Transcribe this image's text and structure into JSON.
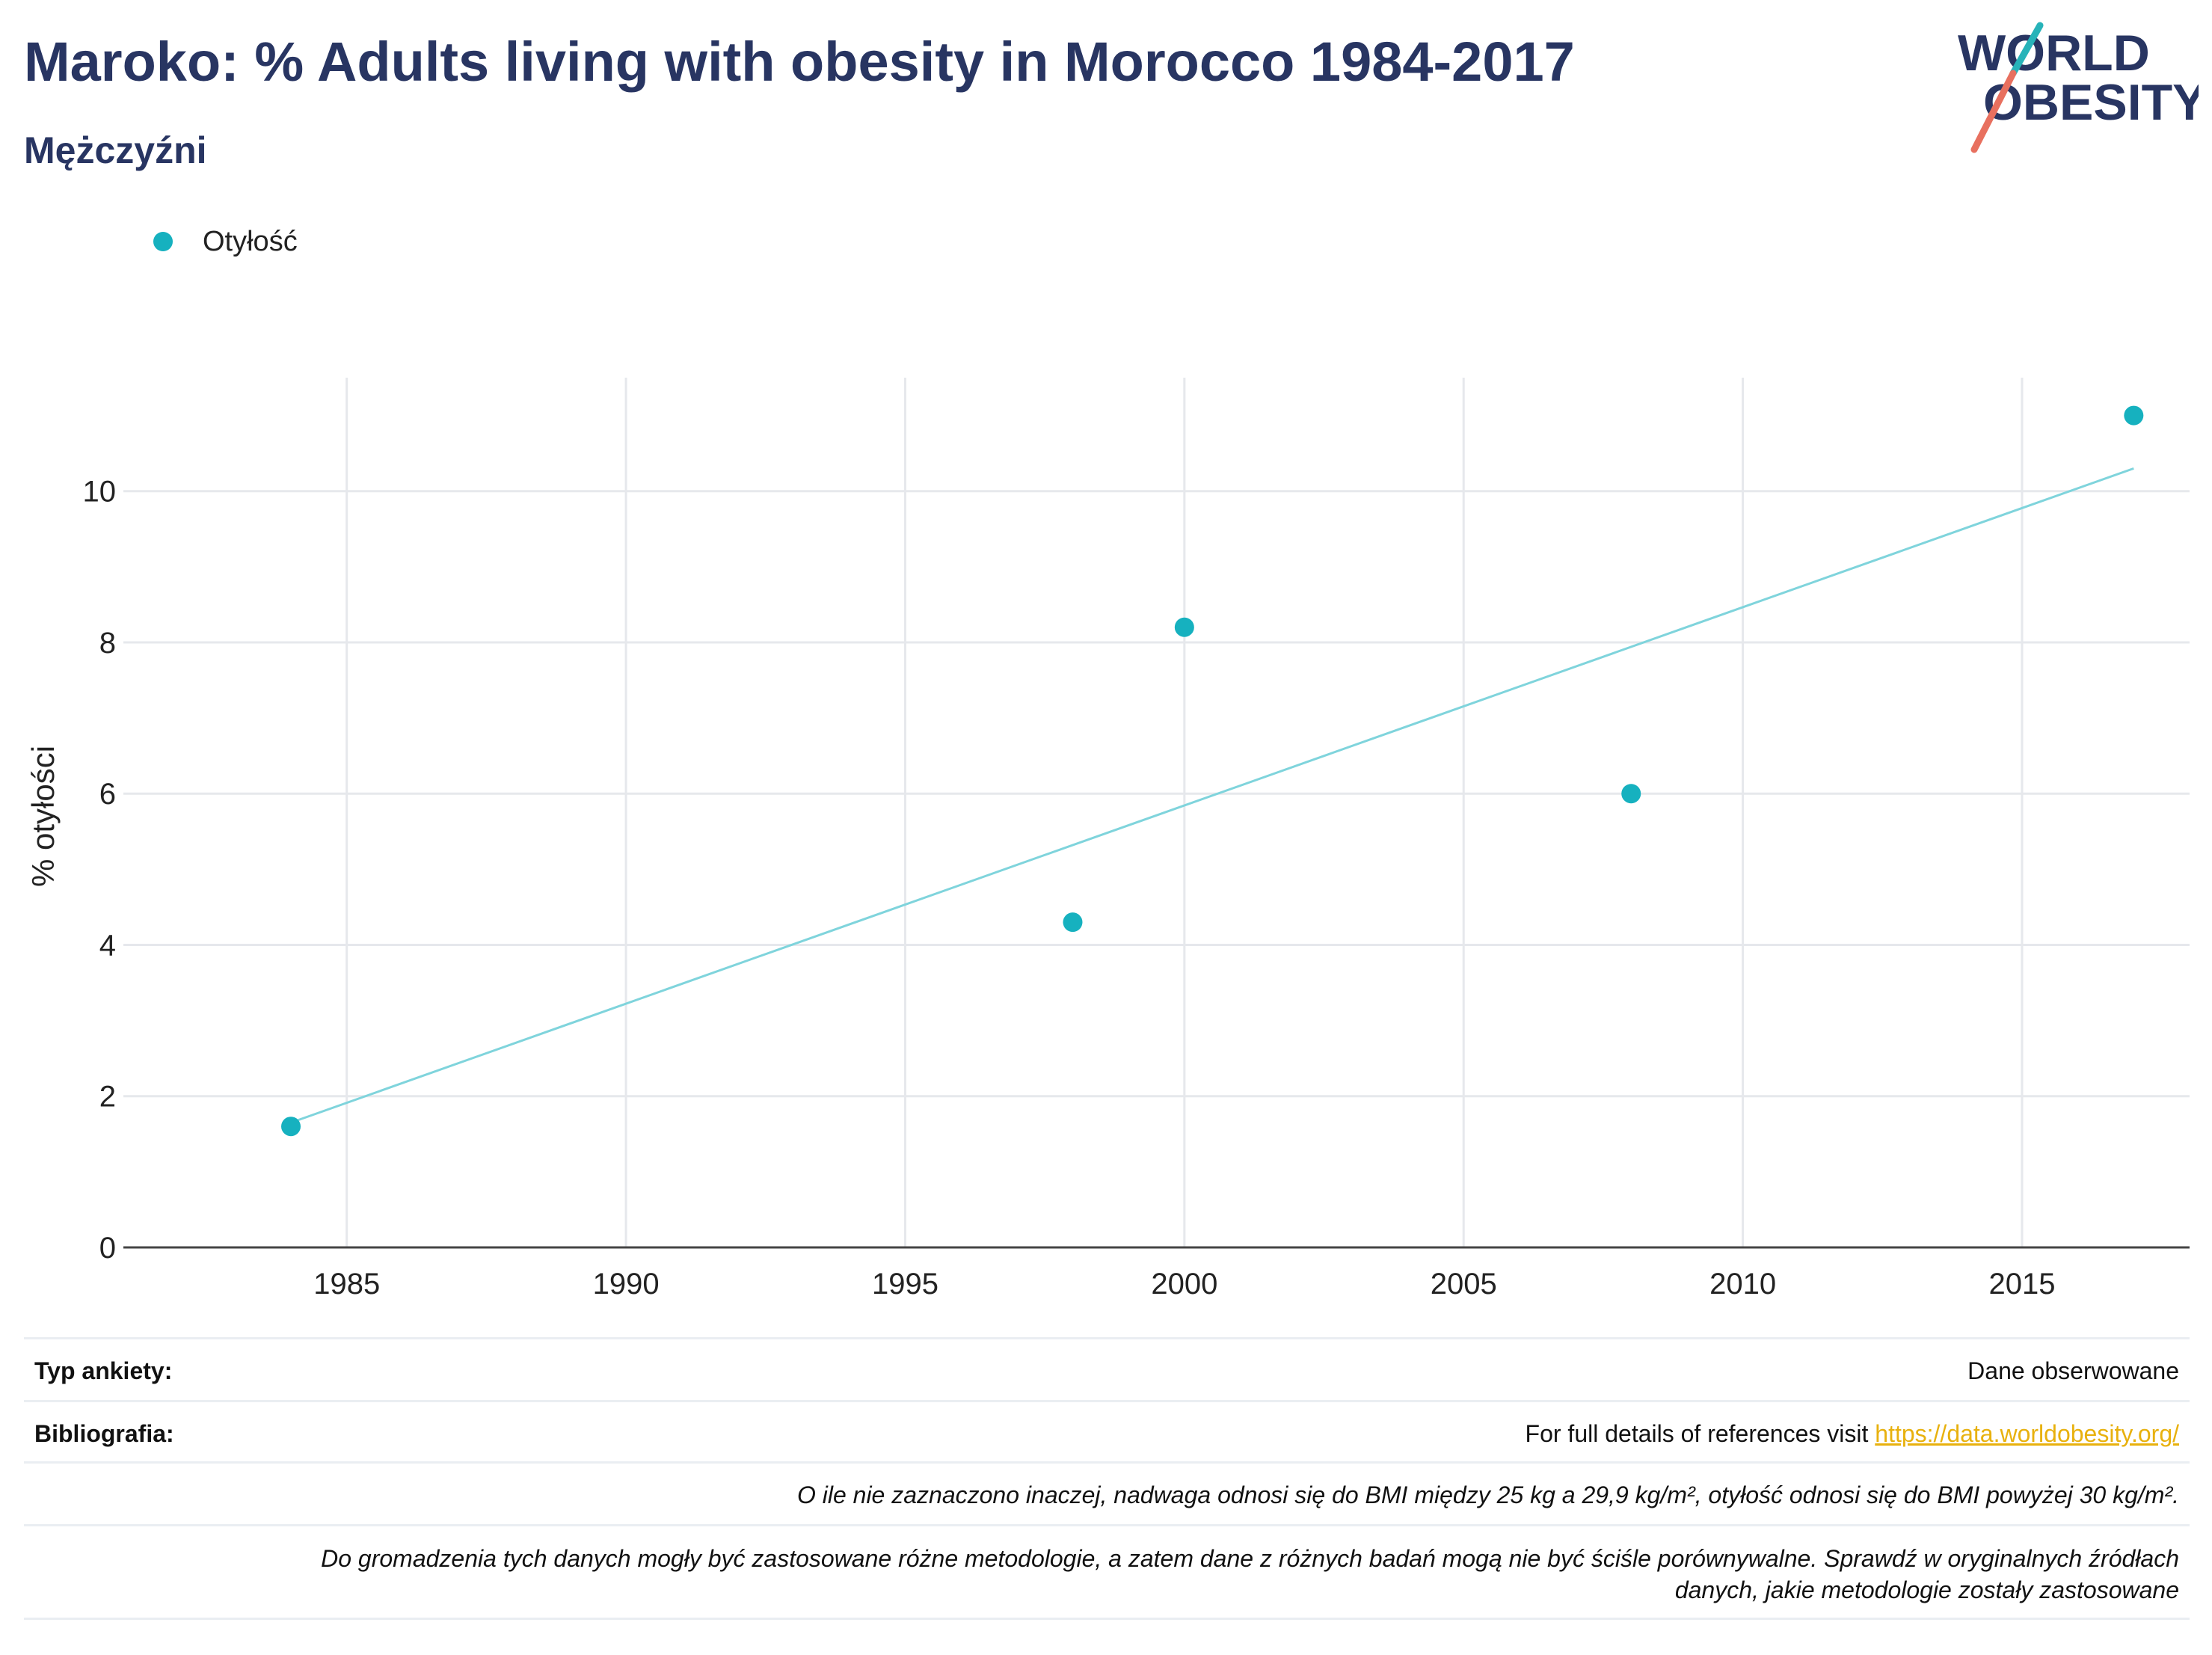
{
  "header": {
    "title": "Maroko: % Adults living with obesity in Morocco 1984-2017",
    "subtitle": "Mężczyźni",
    "logo_line1": "WORLD",
    "logo_line2": "OBESITY"
  },
  "legend": {
    "label": "Otyłość",
    "color": "#16b1bf"
  },
  "chart_data": {
    "type": "scatter",
    "x": [
      1984,
      1998,
      2000,
      2008,
      2017
    ],
    "series": [
      {
        "name": "Otyłość",
        "values": [
          1.6,
          4.3,
          8.2,
          6.0,
          11.0
        ]
      }
    ],
    "trendline": {
      "x": [
        1984,
        2017
      ],
      "y": [
        1.65,
        10.3
      ]
    },
    "xlim": [
      1981,
      2018
    ],
    "ylim": [
      0,
      11.5
    ],
    "xticks": [
      1985,
      1990,
      1995,
      2000,
      2005,
      2010,
      2015
    ],
    "yticks": [
      0,
      2,
      4,
      6,
      8,
      10
    ],
    "ylabel": "% otyłości",
    "xlabel": "",
    "grid": true,
    "legend_position": "top-left",
    "point_color": "#16b1bf",
    "line_color": "#7fd4dc"
  },
  "meta": {
    "survey_label": "Typ ankiety:",
    "survey_value": "Dane obserwowane",
    "bib_label": "Bibliografia:",
    "bib_text": "For full details of references visit ",
    "bib_link": "https://data.worldobesity.org/",
    "note1": "O ile nie zaznaczono inaczej, nadwaga odnosi się do BMI między 25 kg a 29,9 kg/m², otyłość odnosi się do BMI powyżej 30 kg/m².",
    "note2_line1": "Do gromadzenia tych danych mogły być zastosowane różne metodologie, a zatem dane z różnych badań mogą nie być ściśle porównywalne. Sprawdź w oryginalnych źródłach",
    "note2_line2": "danych, jakie metodologie zostały zastosowane"
  }
}
